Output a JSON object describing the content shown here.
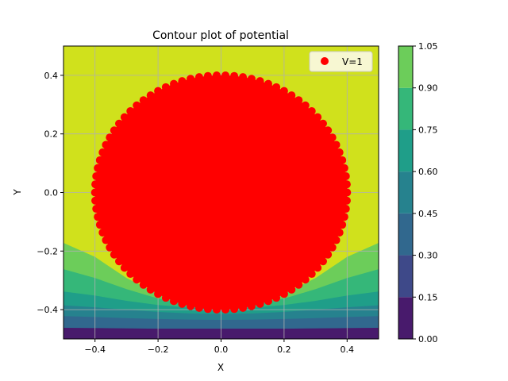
{
  "chart_data": {
    "type": "contour",
    "title": "Contour plot of potential",
    "xlabel": "X",
    "ylabel": "Y",
    "xlim": [
      -0.5,
      0.5
    ],
    "ylim": [
      -0.5,
      0.5
    ],
    "grid": true,
    "x_ticks": [
      -0.4,
      -0.2,
      0.0,
      0.2,
      0.4
    ],
    "x_tick_labels": [
      "−0.4",
      "−0.2",
      "0.0",
      "0.2",
      "0.4"
    ],
    "y_ticks": [
      -0.4,
      -0.2,
      0.0,
      0.2,
      0.4
    ],
    "y_tick_labels": [
      "−0.4",
      "−0.2",
      "0.0",
      "0.2",
      "0.4"
    ],
    "contour_levels": [
      0.0,
      0.15,
      0.3,
      0.45,
      0.6,
      0.75,
      0.9,
      1.05
    ],
    "contour_level_labels": [
      "0.00",
      "0.15",
      "0.30",
      "0.45",
      "0.60",
      "0.75",
      "0.90",
      "1.05"
    ],
    "colormap": [
      "#481a6c",
      "#3e4989",
      "#31688e",
      "#26828e",
      "#1f9e89",
      "#35b779",
      "#6ccd5a",
      "#d0e11c"
    ],
    "contour_boundaries": {
      "x": [
        -0.5,
        -0.4,
        -0.3,
        -0.2,
        -0.1,
        0.0,
        0.1,
        0.2,
        0.3,
        0.4,
        0.5
      ],
      "bands_y": [
        [
          -0.462,
          -0.463,
          -0.464,
          -0.465,
          -0.465,
          -0.465,
          -0.465,
          -0.465,
          -0.464,
          -0.463,
          -0.462
        ],
        [
          -0.422,
          -0.425,
          -0.429,
          -0.432,
          -0.434,
          -0.435,
          -0.434,
          -0.432,
          -0.429,
          -0.425,
          -0.422
        ],
        [
          -0.385,
          -0.392,
          -0.4,
          -0.408,
          -0.413,
          -0.415,
          -0.413,
          -0.408,
          -0.4,
          -0.392,
          -0.385
        ],
        [
          -0.338,
          -0.352,
          -0.37,
          -0.384,
          -0.393,
          -0.396,
          -0.393,
          -0.384,
          -0.37,
          -0.352,
          -0.338
        ],
        [
          -0.262,
          -0.292,
          -0.33,
          -0.362,
          -0.378,
          -0.383,
          -0.378,
          -0.362,
          -0.33,
          -0.292,
          -0.262
        ],
        [
          -0.172,
          -0.22,
          -0.292,
          -0.346,
          -0.37,
          -0.378,
          -0.37,
          -0.346,
          -0.292,
          -0.22,
          -0.172
        ]
      ]
    },
    "series": [
      {
        "name": "V=1",
        "color": "#ff0000",
        "marker": "circle",
        "shape": "disk",
        "center": [
          0.0,
          0.0
        ],
        "radius": 0.4
      }
    ],
    "legend": {
      "entries": [
        "V=1"
      ],
      "placement": "top-right"
    },
    "colorbar": {
      "ticks": [
        0.0,
        0.15,
        0.3,
        0.45,
        0.6,
        0.75,
        0.9,
        1.05
      ],
      "tick_labels": [
        "0.00",
        "0.15",
        "0.30",
        "0.45",
        "0.60",
        "0.75",
        "0.90",
        "1.05"
      ]
    }
  }
}
